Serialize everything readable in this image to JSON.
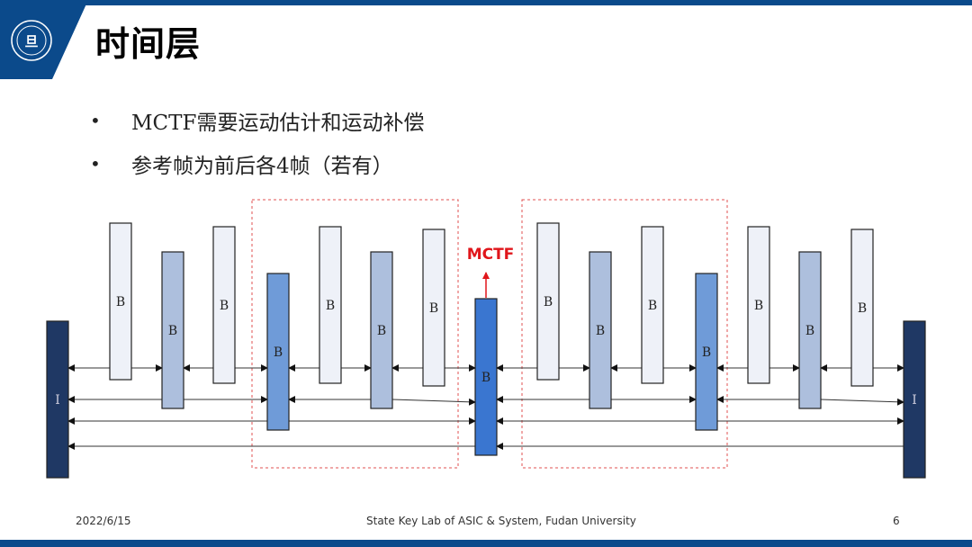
{
  "slide": {
    "title": "时间层",
    "logo_text": "FUDAN UNIVERSITY 1905",
    "bullets": [
      "MCTF需要运动估计和运动补偿",
      "参考帧为前后各4帧（若有）"
    ]
  },
  "diagram": {
    "mctf_label": "MCTF",
    "frame_i_label": "I",
    "frame_b_label": "B",
    "frames": [
      "I",
      "B",
      "B",
      "B",
      "B",
      "B",
      "B",
      "B",
      "B",
      "B",
      "B",
      "B",
      "B",
      "B",
      "B",
      "B",
      "I"
    ],
    "colors": {
      "I": "#1f3864",
      "level1": "#eef1f8",
      "level2": "#adbfdd",
      "level3": "#6f9bd8",
      "level4": "#3a76d0",
      "mctf": "#e0161b",
      "dashed_box": "#e05050",
      "brand": "#0b4a8b"
    }
  },
  "footer": {
    "date": "2022/6/15",
    "organization": "State Key Lab of ASIC & System, Fudan University",
    "page": "6"
  }
}
